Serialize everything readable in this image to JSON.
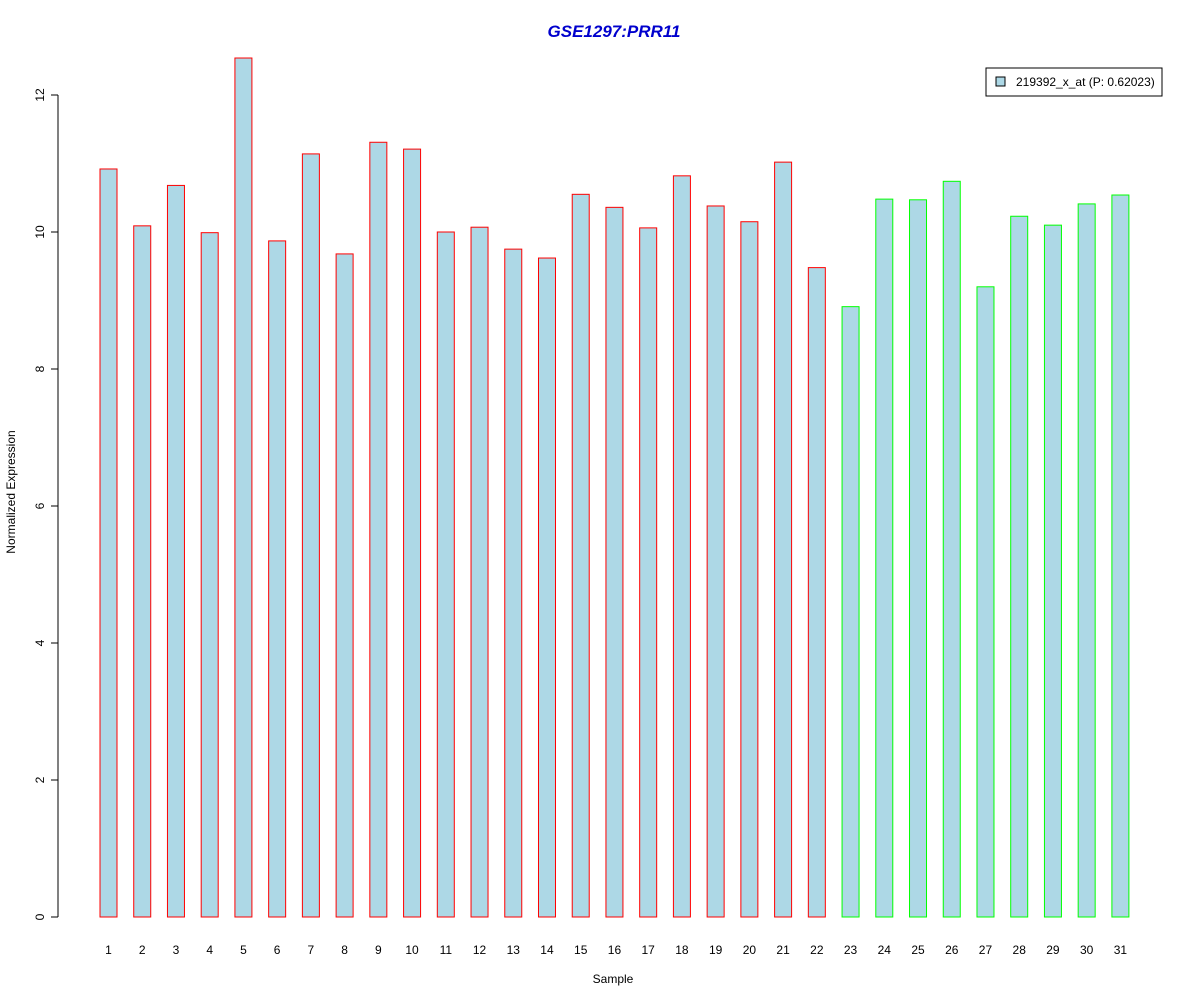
{
  "chart_data": {
    "type": "bar",
    "title": "GSE1297:PRR11",
    "xlabel": "Sample",
    "ylabel": "Normalized Expression",
    "categories": [
      "1",
      "2",
      "3",
      "4",
      "5",
      "6",
      "7",
      "8",
      "9",
      "10",
      "11",
      "12",
      "13",
      "14",
      "15",
      "16",
      "17",
      "18",
      "19",
      "20",
      "21",
      "22",
      "23",
      "24",
      "25",
      "26",
      "27",
      "28",
      "29",
      "30",
      "31"
    ],
    "series": [
      {
        "name": "219392_x_at (P: 0.62023)",
        "values": [
          10.92,
          10.09,
          10.68,
          9.99,
          12.54,
          9.87,
          11.14,
          9.68,
          11.31,
          11.21,
          10.0,
          10.07,
          9.75,
          9.62,
          10.55,
          10.36,
          10.06,
          10.82,
          10.38,
          10.15,
          11.02,
          9.48,
          8.91,
          10.48,
          10.47,
          10.74,
          9.2,
          10.23,
          10.1,
          10.41,
          10.54
        ]
      }
    ],
    "bar_border_colors": [
      "#ff0000",
      "#ff0000",
      "#ff0000",
      "#ff0000",
      "#ff0000",
      "#ff0000",
      "#ff0000",
      "#ff0000",
      "#ff0000",
      "#ff0000",
      "#ff0000",
      "#ff0000",
      "#ff0000",
      "#ff0000",
      "#ff0000",
      "#ff0000",
      "#ff0000",
      "#ff0000",
      "#ff0000",
      "#ff0000",
      "#ff0000",
      "#ff0000",
      "#00ff00",
      "#00ff00",
      "#00ff00",
      "#00ff00",
      "#00ff00",
      "#00ff00",
      "#00ff00",
      "#00ff00",
      "#00ff00"
    ],
    "bar_fill_color": "#add8e6",
    "title_color": "#0000cd",
    "yticks": [
      "0",
      "2",
      "4",
      "6",
      "8",
      "10",
      "12"
    ],
    "ylim": [
      0,
      12.54
    ],
    "grid": false,
    "legend_position": "top-right"
  }
}
